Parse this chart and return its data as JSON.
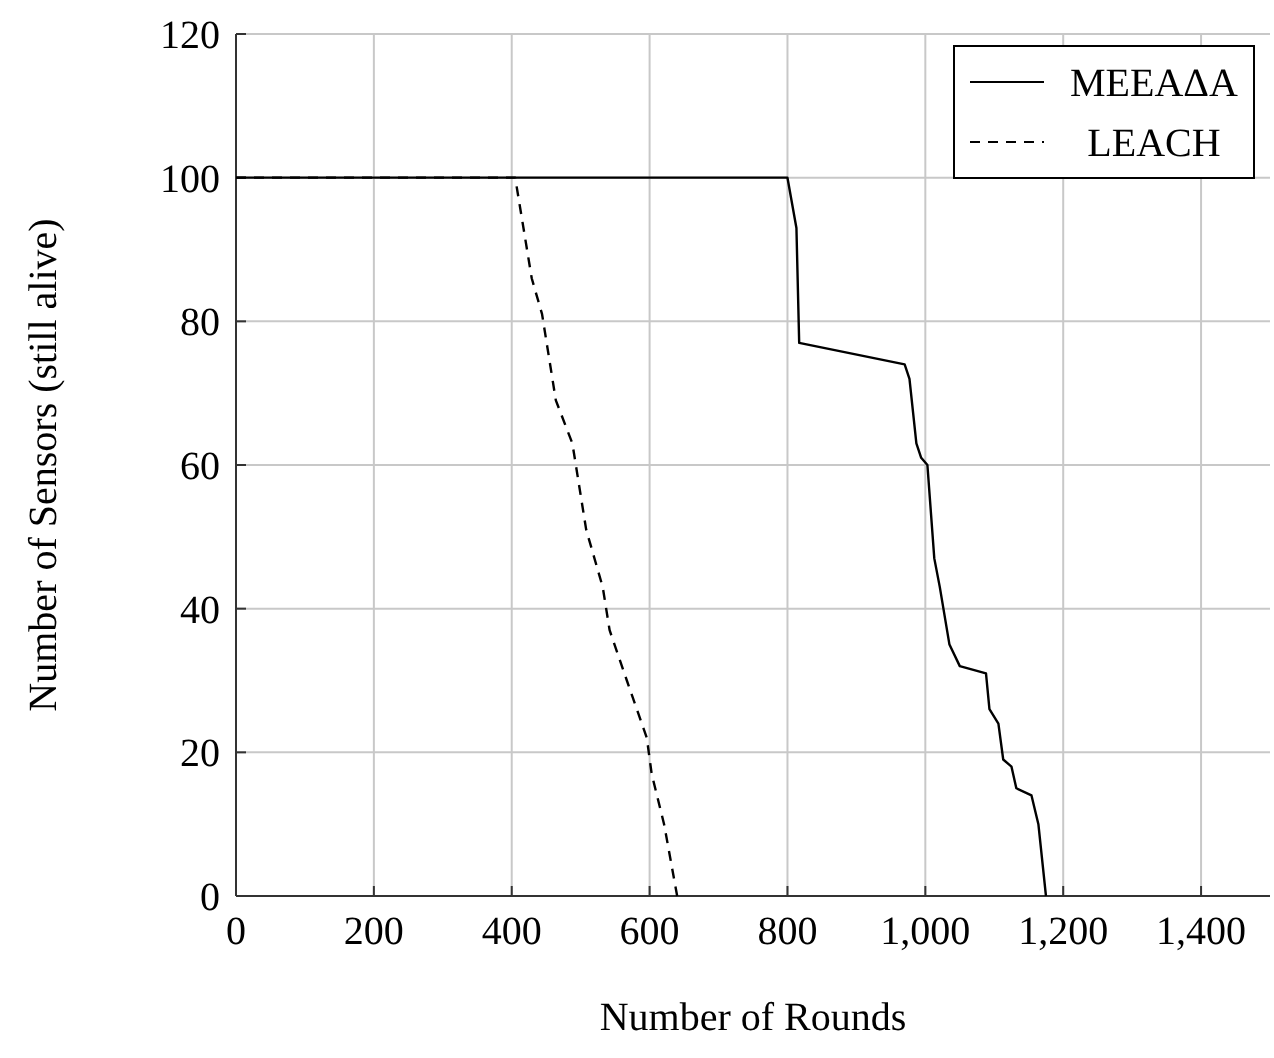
{
  "chart_data": {
    "type": "line",
    "xlabel": "Number of Rounds",
    "ylabel": "Number of Sensors (still alive)",
    "xlim": [
      0,
      1500
    ],
    "ylim": [
      0,
      120
    ],
    "xticks": [
      0,
      200,
      400,
      {
        "value": 600,
        "label": "600"
      },
      800,
      {
        "value": 1000,
        "label": "1,000"
      },
      {
        "value": 1200,
        "label": "1,200"
      },
      {
        "value": 1400,
        "label": "1,400"
      }
    ],
    "yticks": [
      0,
      20,
      40,
      60,
      80,
      100,
      120
    ],
    "grid": true,
    "legend": "top right",
    "series": [
      {
        "name": "MEEAΔA",
        "color": "#000000",
        "line_style": "solid",
        "x": [
          0,
          800,
          813,
          817,
          970,
          977,
          987,
          994,
          1003,
          1013,
          1021,
          1035,
          1050,
          1088,
          1093,
          1106,
          1113,
          1125,
          1132,
          1154,
          1164,
          1175
        ],
        "values": [
          100,
          100,
          93,
          77,
          74,
          72,
          63,
          61,
          60,
          47,
          43,
          35,
          32,
          31,
          26,
          24,
          19,
          18,
          15,
          14,
          10,
          0
        ]
      },
      {
        "name": "LEACH",
        "color": "#000000",
        "line_style": "dashed",
        "x": [
          0,
          405,
          429,
          444,
          464,
          488,
          508,
          532,
          542,
          567,
          596,
          603,
          621,
          640
        ],
        "values": [
          100,
          100,
          86,
          81,
          69,
          63,
          51,
          43,
          37,
          30,
          22,
          17,
          10,
          0
        ]
      }
    ]
  }
}
